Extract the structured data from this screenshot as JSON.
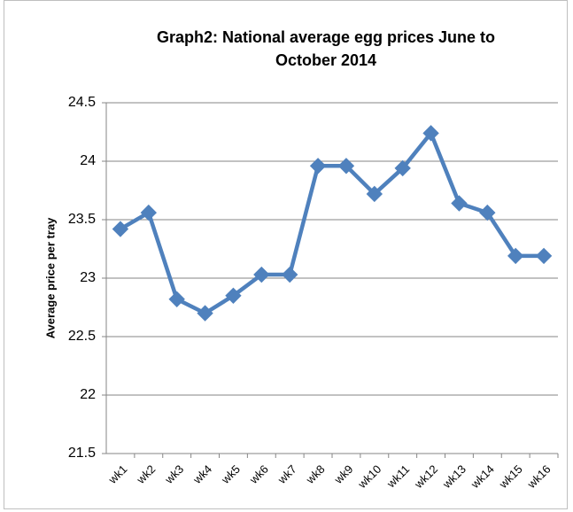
{
  "chart_data": {
    "type": "line",
    "title": "Graph2: National average egg prices June to October 2014",
    "ylabel": "Average price per tray",
    "categories": [
      "wk1",
      "wk2",
      "wk3",
      "wk4",
      "wk5",
      "wk6",
      "wk7",
      "wk8",
      "wk9",
      "wk10",
      "wk11",
      "wk12",
      "wk13",
      "wk14",
      "wk15",
      "wk16"
    ],
    "series": [
      {
        "name": "Average price per tray",
        "color": "#4f81bd",
        "values": [
          23.42,
          23.56,
          22.82,
          22.7,
          22.85,
          23.03,
          23.03,
          23.96,
          23.96,
          23.72,
          23.94,
          24.24,
          23.64,
          23.56,
          23.19,
          23.19
        ]
      }
    ],
    "ylim": [
      21.5,
      24.5
    ],
    "yticks": [
      21.5,
      22,
      22.5,
      23,
      23.5,
      24,
      24.5
    ],
    "grid": true
  }
}
